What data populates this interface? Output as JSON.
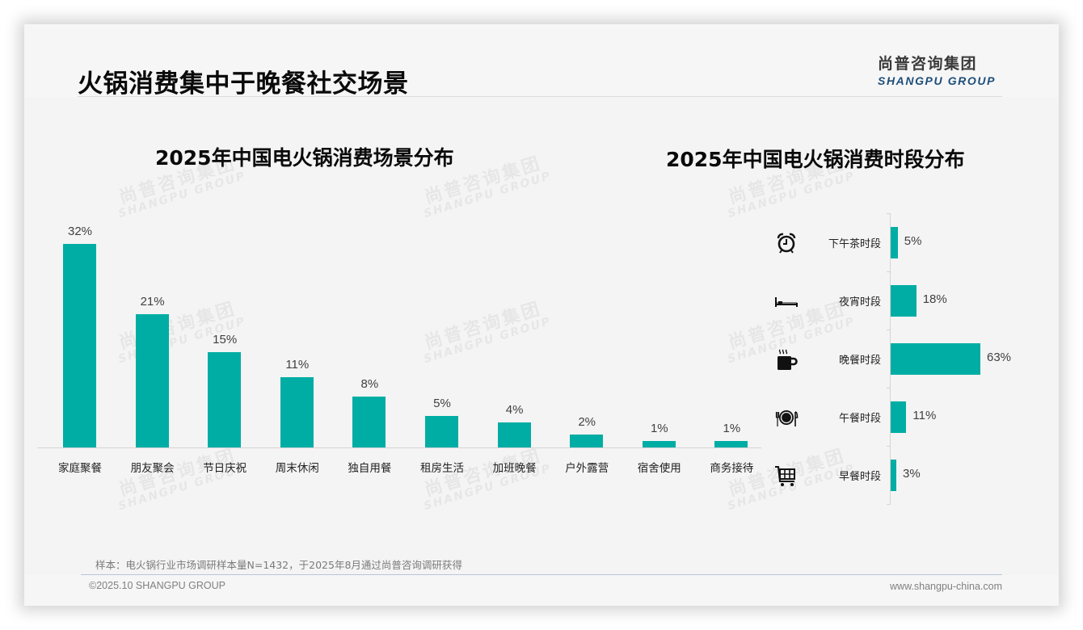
{
  "page": {
    "title": "火锅消费集中于晚餐社交场景",
    "logo": {
      "cn": "尚普咨询集团",
      "en": "SHANGPU GROUP"
    },
    "watermark": {
      "cn": "尚普咨询集团",
      "en": "SHANGPU GROUP"
    },
    "note": "样本：电火锅行业市场调研样本量N=1432，于2025年8月通过尚普咨询调研获得",
    "copyright": "©2025.10 SHANGPU GROUP",
    "website": "www.shangpu-china.com"
  },
  "colors": {
    "bar": "#00ada4",
    "logo_en": "#1d4e7a",
    "text_dark": "#0a0a0a",
    "value_text": "#404040",
    "background": "#f4f4f4"
  },
  "chart_data": [
    {
      "type": "bar",
      "title": "2025年中国电火锅消费场景分布",
      "categories": [
        "家庭聚餐",
        "朋友聚会",
        "节日庆祝",
        "周末休闲",
        "独自用餐",
        "租房生活",
        "加班晚餐",
        "户外露营",
        "宿舍使用",
        "商务接待"
      ],
      "values": [
        32,
        21,
        15,
        11,
        8,
        5,
        4,
        2,
        1,
        1
      ],
      "value_labels": [
        "32%",
        "21%",
        "15%",
        "11%",
        "8%",
        "5%",
        "4%",
        "2%",
        "1%",
        "1%"
      ],
      "unit": "%",
      "xlabel": "",
      "ylabel": "",
      "ylim": [
        0,
        35
      ],
      "grid": false,
      "legend": "none",
      "orientation": "vertical"
    },
    {
      "type": "bar",
      "title": "2025年中国电火锅消费时段分布",
      "categories": [
        "下午茶时段",
        "夜宵时段",
        "晚餐时段",
        "午餐时段",
        "早餐时段"
      ],
      "values": [
        5,
        18,
        63,
        11,
        3
      ],
      "value_labels": [
        "5%",
        "18%",
        "63%",
        "11%",
        "3%"
      ],
      "icons": [
        "alarm-clock-icon",
        "bed-icon",
        "hot-cup-icon",
        "plate-cutlery-icon",
        "shopping-cart-icon"
      ],
      "unit": "%",
      "xlabel": "",
      "ylabel": "",
      "xlim": [
        0,
        70
      ],
      "grid": false,
      "legend": "none",
      "orientation": "horizontal"
    }
  ]
}
